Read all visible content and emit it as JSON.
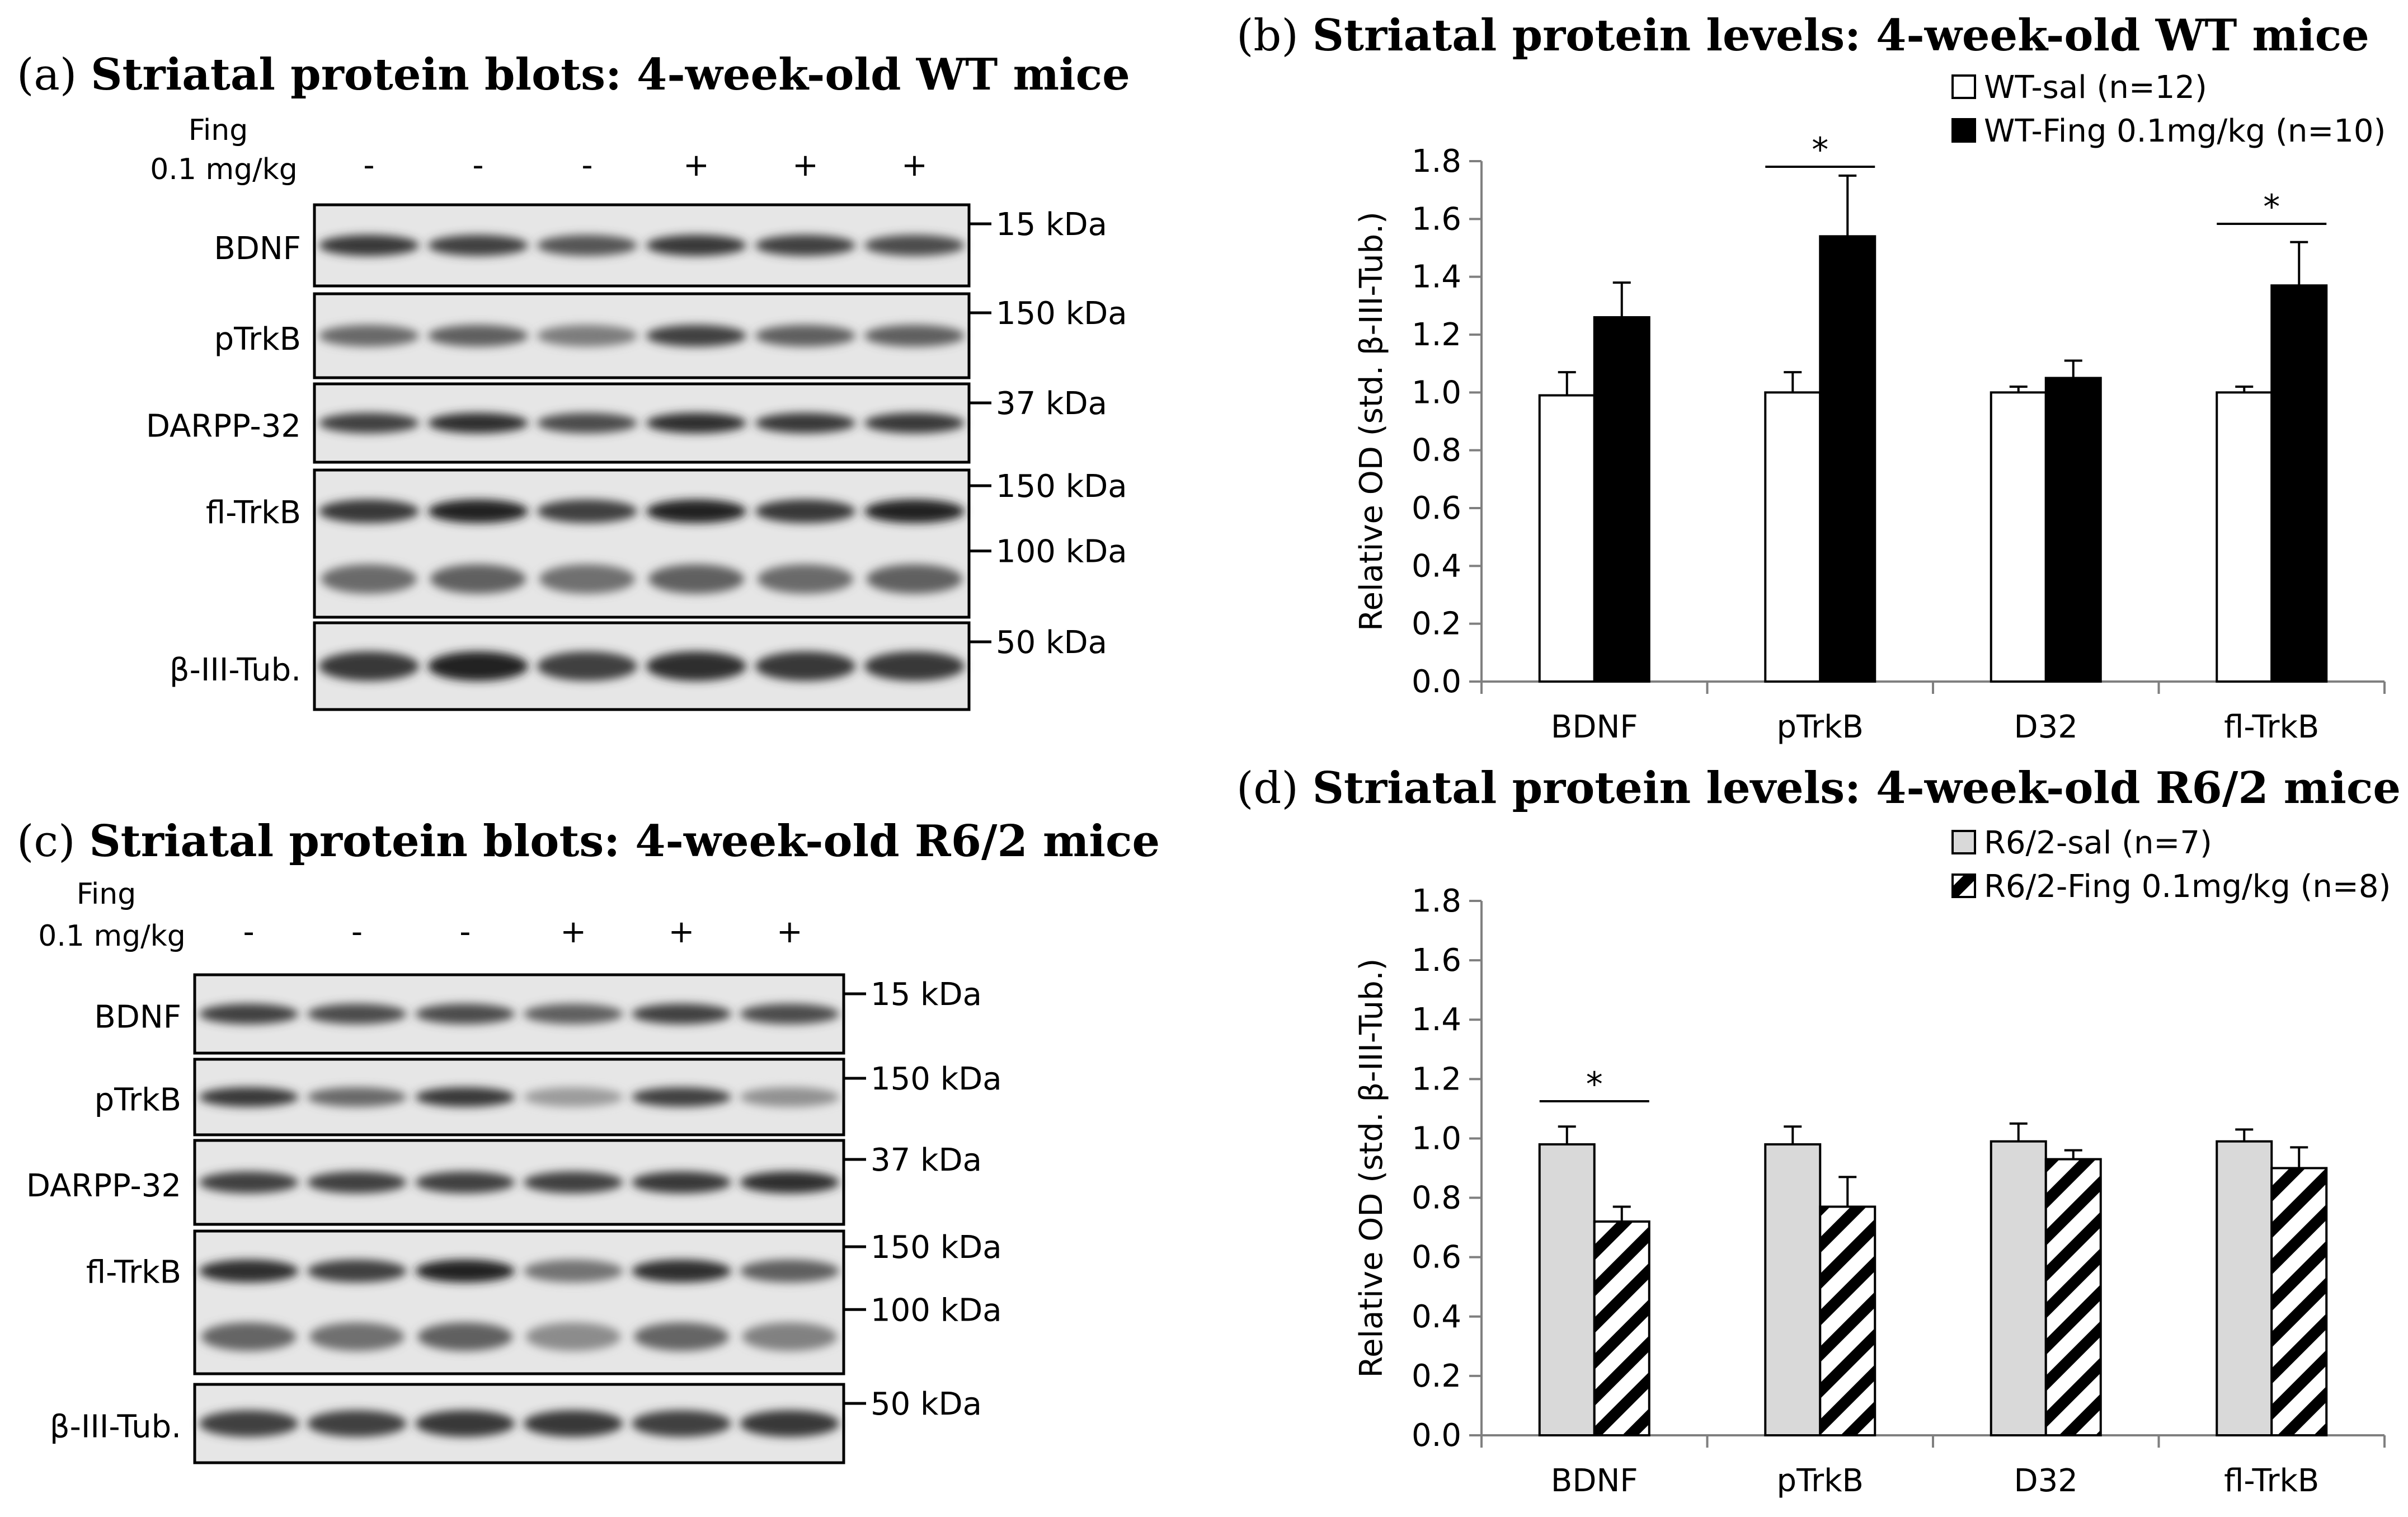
{
  "panels": {
    "a": {
      "label": "(a)",
      "title": "Striatal protein blots: 4-week-old WT mice",
      "treatment_line1": "Fing",
      "treatment_line2": "0.1 mg/kg",
      "lanes": [
        "-",
        "-",
        "-",
        "+",
        "+",
        "+"
      ],
      "blots": [
        {
          "name": "BDNF",
          "markers": [
            "15 kDa"
          ],
          "intensity": [
            0.85,
            0.8,
            0.7,
            0.85,
            0.8,
            0.75
          ]
        },
        {
          "name": "pTrkB",
          "markers": [
            "150 kDa"
          ],
          "intensity": [
            0.6,
            0.65,
            0.5,
            0.8,
            0.65,
            0.65
          ]
        },
        {
          "name": "DARPP-32",
          "markers": [
            "37 kDa"
          ],
          "intensity": [
            0.8,
            0.9,
            0.75,
            0.9,
            0.85,
            0.85
          ]
        },
        {
          "name": "fl-TrkB",
          "markers": [
            "150 kDa",
            "100 kDa"
          ],
          "intensity": [
            0.85,
            0.95,
            0.8,
            0.95,
            0.85,
            0.95
          ]
        },
        {
          "name": "β-III-Tub.",
          "markers": [
            "50 kDa"
          ],
          "intensity": [
            0.85,
            0.95,
            0.8,
            0.9,
            0.85,
            0.85
          ]
        }
      ]
    },
    "b": {
      "label": "(b)",
      "title": "Striatal protein levels: 4-week-old WT mice"
    },
    "c": {
      "label": "(c)",
      "title": "Striatal protein blots: 4-week-old R6/2 mice",
      "treatment_line1": "Fing",
      "treatment_line2": "0.1 mg/kg",
      "lanes": [
        "-",
        "-",
        "-",
        "+",
        "+",
        "+"
      ],
      "blots": [
        {
          "name": "BDNF",
          "markers": [
            "15 kDa"
          ],
          "intensity": [
            0.8,
            0.75,
            0.75,
            0.65,
            0.8,
            0.75
          ]
        },
        {
          "name": "pTrkB",
          "markers": [
            "150 kDa"
          ],
          "intensity": [
            0.85,
            0.6,
            0.85,
            0.35,
            0.8,
            0.4
          ]
        },
        {
          "name": "DARPP-32",
          "markers": [
            "37 kDa"
          ],
          "intensity": [
            0.8,
            0.8,
            0.8,
            0.8,
            0.85,
            0.9
          ]
        },
        {
          "name": "fl-TrkB",
          "markers": [
            "150 kDa",
            "100 kDa"
          ],
          "intensity": [
            0.9,
            0.8,
            0.95,
            0.55,
            0.9,
            0.65
          ]
        },
        {
          "name": "β-III-Tub.",
          "markers": [
            "50 kDa"
          ],
          "intensity": [
            0.8,
            0.8,
            0.85,
            0.85,
            0.8,
            0.85
          ]
        }
      ]
    },
    "d": {
      "label": "(d)",
      "title": "Striatal protein levels: 4-week-old R6/2 mice"
    }
  },
  "chart_data": [
    {
      "type": "bar",
      "panel": "b",
      "title": "Striatal protein levels: 4-week-old WT mice",
      "categories": [
        "BDNF",
        "pTrkB",
        "D32",
        "fl-TrkB"
      ],
      "ylabel": "Relative OD (std. β-III-Tub.)",
      "xlabel": "",
      "ylim": [
        0,
        1.8
      ],
      "yticks": [
        "0.0",
        "0.2",
        "0.4",
        "0.6",
        "0.8",
        "1.0",
        "1.2",
        "1.4",
        "1.6",
        "1.8"
      ],
      "series": [
        {
          "name": "WT-sal (n=12)",
          "fill": "#ffffff",
          "pattern": "none",
          "values": [
            0.99,
            1.0,
            1.0,
            1.0
          ],
          "errors": [
            0.08,
            0.07,
            0.02,
            0.02
          ]
        },
        {
          "name": "WT-Fing 0.1mg/kg (n=10)",
          "fill": "#000000",
          "pattern": "none",
          "values": [
            1.26,
            1.54,
            1.05,
            1.37
          ],
          "errors": [
            0.12,
            0.21,
            0.06,
            0.15
          ]
        }
      ],
      "significance": [
        {
          "category": "pTrkB",
          "label": "*"
        },
        {
          "category": "fl-TrkB",
          "label": "*"
        }
      ]
    },
    {
      "type": "bar",
      "panel": "d",
      "title": "Striatal protein levels: 4-week-old R6/2 mice",
      "categories": [
        "BDNF",
        "pTrkB",
        "D32",
        "fl-TrkB"
      ],
      "ylabel": "Relative OD (std. β-III-Tub.)",
      "xlabel": "",
      "ylim": [
        0,
        1.8
      ],
      "yticks": [
        "0.0",
        "0.2",
        "0.4",
        "0.6",
        "0.8",
        "1.0",
        "1.2",
        "1.4",
        "1.6",
        "1.8"
      ],
      "series": [
        {
          "name": "R6/2-sal (n=7)",
          "fill": "#d9d9d9",
          "pattern": "none",
          "values": [
            0.98,
            0.98,
            0.99,
            0.99
          ],
          "errors": [
            0.06,
            0.06,
            0.06,
            0.04
          ]
        },
        {
          "name": "R6/2-Fing 0.1mg/kg (n=8)",
          "fill": "#ffffff",
          "pattern": "diagonal",
          "values": [
            0.72,
            0.77,
            0.93,
            0.9
          ],
          "errors": [
            0.05,
            0.1,
            0.03,
            0.07
          ]
        }
      ],
      "significance": [
        {
          "category": "BDNF",
          "label": "*"
        }
      ]
    }
  ]
}
